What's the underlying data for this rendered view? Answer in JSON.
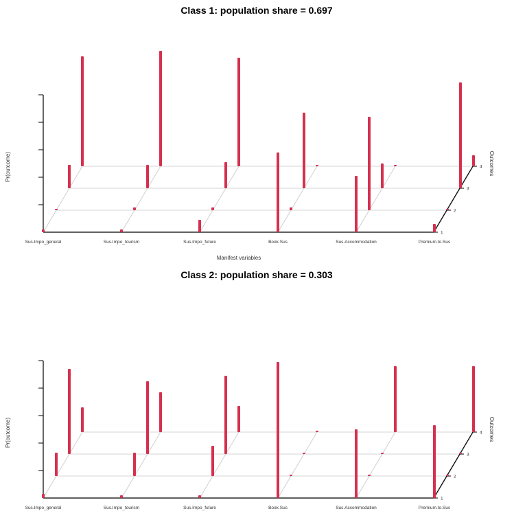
{
  "chart_data": [
    {
      "type": "bar3d",
      "title": "Class 1: population share = 0.697",
      "zlabel": "Pr(outcome)",
      "xlabel": "Manifest variables",
      "ylabel": "Outcomes",
      "categories": [
        "Sus.Impo_general",
        "Sus.Impo_tourism",
        "Sus.Impo_future",
        "Book.Sus",
        "Sus.Accommodation",
        "Premium.to.Sus"
      ],
      "outcomes": [
        "1",
        "2",
        "3",
        "4"
      ],
      "zlim": [
        0,
        1
      ],
      "values": [
        [
          0.02,
          0.01,
          0.17,
          0.8
        ],
        [
          0.02,
          0.02,
          0.17,
          0.84
        ],
        [
          0.09,
          0.02,
          0.19,
          0.79
        ],
        [
          0.58,
          0.02,
          0.55,
          0.01
        ],
        [
          0.41,
          0.68,
          0.18,
          0.01
        ],
        [
          0.06,
          0.01,
          0.77,
          0.08
        ]
      ]
    },
    {
      "type": "bar3d",
      "title": "Class 2: population share = 0.303",
      "zlabel": "Pr(outcome)",
      "xlabel": "",
      "ylabel": "Outcomes",
      "categories": [
        "Sus.Impo_general",
        "Sus.Impo_tourism",
        "Sus.Impo_future",
        "Book.Sus",
        "Sus.Accommodation",
        "Premium.to.Sus"
      ],
      "outcomes": [
        "1",
        "2",
        "3",
        "4"
      ],
      "zlim": [
        0,
        1
      ],
      "values": [
        [
          0.03,
          0.17,
          0.62,
          0.18
        ],
        [
          0.02,
          0.17,
          0.53,
          0.29
        ],
        [
          0.02,
          0.22,
          0.57,
          0.19
        ],
        [
          0.99,
          0.01,
          0.0,
          0.0
        ],
        [
          0.5,
          0.01,
          0.01,
          0.48
        ],
        [
          0.53,
          0.0,
          0.0,
          0.48
        ]
      ]
    }
  ],
  "colors": {
    "bar": "#d6304f",
    "grid": "#c6c6c6",
    "axis": "#000000"
  }
}
